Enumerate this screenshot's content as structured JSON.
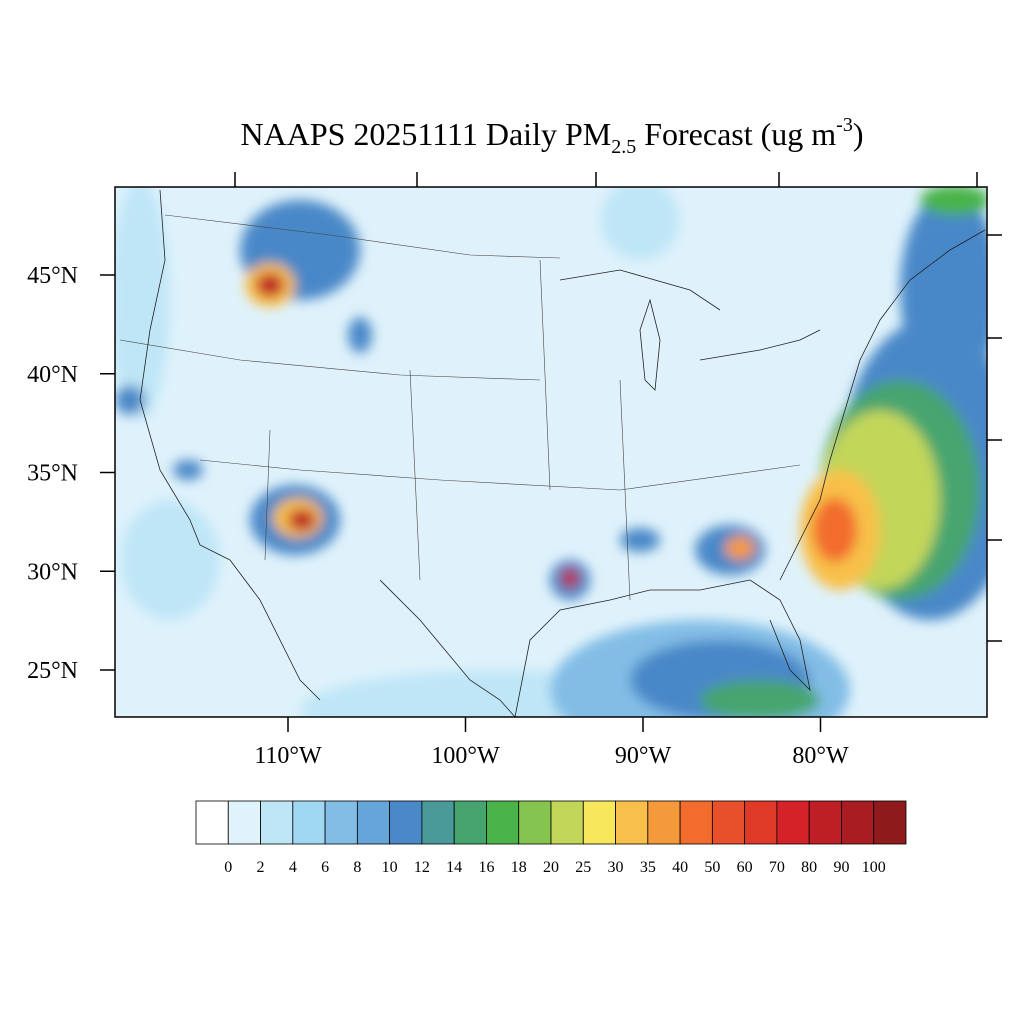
{
  "title": {
    "main": "NAAPS 20251111 Daily PM",
    "subscript": "2.5",
    "rest": " Forecast (ug m",
    "superscript": "-3",
    "end": ")"
  },
  "latitude_labels": [
    {
      "value": 45,
      "label": "45°N"
    },
    {
      "value": 40,
      "label": "40°N"
    },
    {
      "value": 35,
      "label": "35°N"
    },
    {
      "value": 30,
      "label": "30°N"
    },
    {
      "value": 25,
      "label": "25°N"
    }
  ],
  "longitude_labels": [
    {
      "value": -110,
      "label": "110°W"
    },
    {
      "value": -100,
      "label": "100°W"
    },
    {
      "value": -90,
      "label": "90°W"
    },
    {
      "value": -80,
      "label": "80°W"
    }
  ],
  "colorbar": {
    "ticks": [
      0,
      2,
      4,
      6,
      8,
      10,
      12,
      14,
      16,
      18,
      20,
      25,
      30,
      35,
      40,
      50,
      60,
      70,
      80,
      90,
      100
    ],
    "colors": [
      "#ffffff",
      "#e0f3fb",
      "#bfe6f7",
      "#a0d8f2",
      "#82bde6",
      "#66a5d9",
      "#4a88c8",
      "#4a9a9a",
      "#46a56f",
      "#4ab34a",
      "#85c44f",
      "#c2d65a",
      "#f6e85a",
      "#f8c04a",
      "#f59a3a",
      "#f26c2e",
      "#e8502c",
      "#df3a28",
      "#d42228",
      "#be1f25",
      "#a81c22",
      "#8e1a1c"
    ]
  }
}
